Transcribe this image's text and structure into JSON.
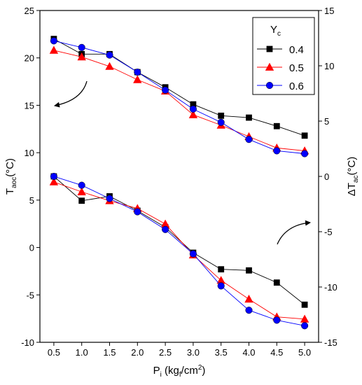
{
  "chart_data": {
    "type": "line",
    "x": [
      0.5,
      1.0,
      1.5,
      2.0,
      2.5,
      3.0,
      3.5,
      4.0,
      4.5,
      5.0
    ],
    "x_tick_labels": [
      "0.5",
      "1.0",
      "1.5",
      "2.0",
      "2.5",
      "3.0",
      "3.5",
      "4.0",
      "4.5",
      "5.0"
    ],
    "xlim": [
      0.25,
      5.25
    ],
    "xlabel": {
      "main": "P",
      "sub": "i",
      "unit_open": " (kg",
      "unit_sub": "f",
      "unit_close": "/cm",
      "unit_sup": "2",
      "unit_end": ")"
    },
    "y_left": {
      "label": {
        "main": "T",
        "sub": "aoc",
        "unit": "(°C)"
      },
      "ylim": [
        -10,
        25
      ],
      "ticks": [
        -10,
        -5,
        0,
        5,
        10,
        15,
        20,
        25
      ],
      "tick_labels": [
        "-10",
        "-5",
        "0",
        "5",
        "10",
        "15",
        "20",
        "25"
      ]
    },
    "y_right": {
      "label": {
        "main": "ΔT",
        "sub": "ac",
        "unit": "(°C)"
      },
      "ylim": [
        -15,
        15
      ],
      "ticks": [
        -15,
        -10,
        -5,
        0,
        5,
        10,
        15
      ],
      "tick_labels": [
        "-15",
        "-10",
        "-5",
        "0",
        "5",
        "10",
        "15"
      ]
    },
    "legend": {
      "title_main": "Y",
      "title_sub": "c",
      "placement": "top-right"
    },
    "series": [
      {
        "name": "0.4",
        "color": "#000000",
        "marker": "square",
        "t_aoc": [
          22.0,
          20.4,
          20.4,
          18.5,
          16.9,
          15.1,
          13.9,
          13.7,
          12.8,
          11.8
        ],
        "delta_t_ac": [
          0.0,
          -2.2,
          -1.8,
          -3.1,
          -4.6,
          -6.9,
          -8.4,
          -8.5,
          -9.6,
          -11.6
        ]
      },
      {
        "name": "0.5",
        "color": "#ff0000",
        "marker": "triangle",
        "t_aoc": [
          20.8,
          20.1,
          19.1,
          17.7,
          16.5,
          14.0,
          12.9,
          11.7,
          10.5,
          10.2
        ],
        "delta_t_ac": [
          -0.5,
          -1.4,
          -2.2,
          -2.9,
          -4.3,
          -7.1,
          -9.4,
          -11.1,
          -12.7,
          -12.9
        ]
      },
      {
        "name": "0.6",
        "color": "#0000ff",
        "marker": "circle",
        "t_aoc": [
          21.8,
          21.1,
          20.3,
          18.5,
          16.6,
          14.6,
          13.2,
          11.4,
          10.2,
          9.9
        ],
        "delta_t_ac": [
          0.0,
          -0.8,
          -2.0,
          -3.2,
          -4.8,
          -7.0,
          -9.9,
          -12.1,
          -13.0,
          -13.5
        ]
      }
    ]
  }
}
